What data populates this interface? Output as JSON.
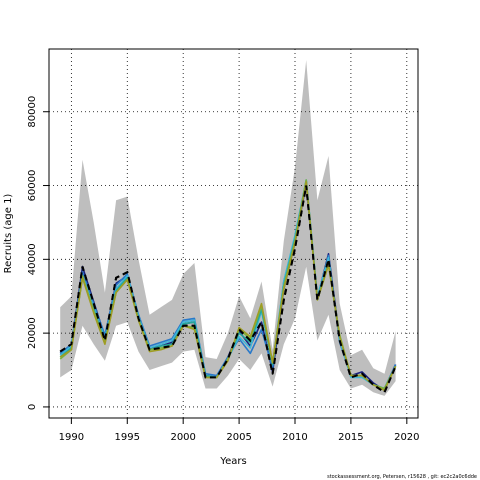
{
  "chart_data": {
    "type": "line",
    "title": "",
    "xlabel": "Years",
    "ylabel": "Recruits (age 1)",
    "xlim": [
      1988,
      2021
    ],
    "ylim": [
      -3000,
      97000
    ],
    "xticks": [
      1990,
      1995,
      2000,
      2005,
      2010,
      2015,
      2020
    ],
    "yticks": [
      0,
      20000,
      40000,
      60000,
      80000
    ],
    "grid": "dotted",
    "legend": "none",
    "footer": "stockassessment.org, Petersen, r15628 , git: ec2c2a0c6dde",
    "x": [
      1989,
      1990,
      1991,
      1992,
      1993,
      1994,
      1995,
      1996,
      1997,
      1998,
      1999,
      2000,
      2001,
      2002,
      2003,
      2004,
      2005,
      2006,
      2007,
      2008,
      2009,
      2010,
      2011,
      2012,
      2013,
      2014,
      2015,
      2016,
      2017,
      2018,
      2019
    ],
    "band": {
      "color": "#bebebe",
      "lower": [
        8000,
        10000,
        22000,
        17000,
        12500,
        22000,
        23000,
        15000,
        10000,
        11000,
        12000,
        15000,
        15500,
        5000,
        5000,
        8500,
        13000,
        10000,
        14500,
        5500,
        17000,
        24000,
        38000,
        18000,
        25000,
        10000,
        5000,
        6000,
        4000,
        3000,
        7000
      ],
      "upper": [
        27000,
        30000,
        67000,
        50000,
        31000,
        56000,
        57000,
        40000,
        25000,
        27000,
        29000,
        36000,
        39000,
        13500,
        13000,
        20000,
        30000,
        24000,
        34000,
        15500,
        45000,
        65000,
        94000,
        56000,
        68000,
        28000,
        14000,
        15500,
        10500,
        9000,
        20500
      ]
    },
    "series": [
      {
        "color": "#000000",
        "dash": "6,4",
        "values": [
          15000,
          17000,
          38000,
          28000,
          18000,
          35000,
          36500,
          24000,
          15500,
          16000,
          16500,
          22000,
          22000,
          8000,
          8000,
          13000,
          21000,
          18000,
          23000,
          9000,
          29000,
          43000,
          60000,
          29000,
          40000,
          18000,
          8000,
          9000,
          6000,
          4000,
          11000
        ]
      },
      {
        "color": "#1a237e",
        "values": [
          14500,
          16500,
          38000,
          28500,
          19000,
          33500,
          35500,
          24500,
          16000,
          16500,
          17500,
          22500,
          23000,
          8500,
          8000,
          13500,
          20500,
          16500,
          23000,
          9500,
          32000,
          44500,
          60500,
          29500,
          41500,
          18500,
          8500,
          9500,
          6500,
          4500,
          11500
        ]
      },
      {
        "color": "#2979c9",
        "values": [
          14500,
          17000,
          36500,
          28000,
          19500,
          33000,
          36000,
          25000,
          16500,
          17500,
          18500,
          23500,
          24000,
          9000,
          8500,
          13500,
          18500,
          14500,
          21000,
          10500,
          34000,
          46000,
          61000,
          29500,
          41000,
          17500,
          8500,
          8500,
          6000,
          5000,
          11500
        ]
      },
      {
        "color": "#40b8d8",
        "values": [
          14000,
          16500,
          35500,
          27000,
          18500,
          32000,
          35500,
          24500,
          16000,
          17000,
          18000,
          23000,
          23500,
          8500,
          8000,
          13000,
          19000,
          16000,
          26000,
          11500,
          34000,
          46500,
          61500,
          30000,
          40500,
          18000,
          8000,
          8000,
          6000,
          5000,
          11000
        ]
      },
      {
        "color": "#26a69a",
        "values": [
          13500,
          16000,
          35000,
          26500,
          18000,
          31500,
          35000,
          24000,
          15500,
          16500,
          17000,
          22500,
          23000,
          8500,
          8000,
          13000,
          20000,
          17500,
          26500,
          11500,
          33000,
          45500,
          61500,
          29500,
          39000,
          19000,
          8500,
          8500,
          6000,
          5000,
          11000
        ]
      },
      {
        "color": "#7cb342",
        "values": [
          13000,
          15500,
          35500,
          26000,
          17500,
          31000,
          34500,
          23500,
          15500,
          16000,
          16500,
          22000,
          21500,
          8000,
          8000,
          13000,
          21000,
          18500,
          27500,
          12000,
          32500,
          45000,
          61500,
          29000,
          38500,
          19500,
          8500,
          8500,
          6000,
          5000,
          11000
        ]
      },
      {
        "color": "#9e9d24",
        "values": [
          13500,
          15500,
          35000,
          25500,
          17000,
          31000,
          34500,
          23500,
          15000,
          15500,
          16500,
          22000,
          21000,
          8000,
          8000,
          12500,
          21500,
          19000,
          28000,
          12000,
          32000,
          44500,
          61000,
          29000,
          38500,
          19000,
          8500,
          8500,
          6000,
          4500,
          11000
        ]
      }
    ]
  }
}
